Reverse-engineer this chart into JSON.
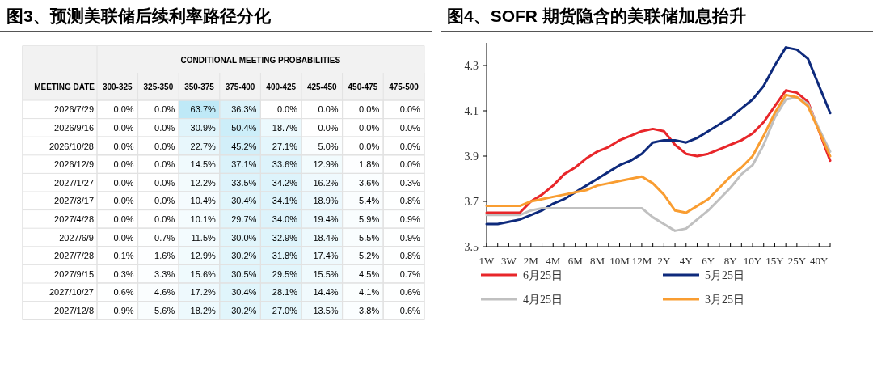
{
  "chart_data": [
    {
      "type": "heatmap",
      "title": "图3、预测美联储后续利率路径分化",
      "subtitle": "CONDITIONAL MEETING PROBABILITIES",
      "ylabel": "MEETING DATE",
      "categories": [
        "300-325",
        "325-350",
        "350-375",
        "375-400",
        "400-425",
        "425-450",
        "450-475",
        "475-500"
      ],
      "y_categories": [
        "2026/7/29",
        "2026/9/16",
        "2026/10/28",
        "2026/12/9",
        "2027/1/27",
        "2027/3/17",
        "2027/4/28",
        "2027/6/9",
        "2027/7/28",
        "2027/9/15",
        "2027/10/27",
        "2027/12/8"
      ],
      "cells": [
        [
          0.0,
          0.0,
          63.7,
          36.3,
          0.0,
          0.0,
          0.0,
          0.0
        ],
        [
          0.0,
          0.0,
          30.9,
          50.4,
          18.7,
          0.0,
          0.0,
          0.0
        ],
        [
          0.0,
          0.0,
          22.7,
          45.2,
          27.1,
          5.0,
          0.0,
          0.0
        ],
        [
          0.0,
          0.0,
          14.5,
          37.1,
          33.6,
          12.9,
          1.8,
          0.0
        ],
        [
          0.0,
          0.0,
          12.2,
          33.5,
          34.2,
          16.2,
          3.6,
          0.3
        ],
        [
          0.0,
          0.0,
          10.4,
          30.4,
          34.1,
          18.9,
          5.4,
          0.8
        ],
        [
          0.0,
          0.0,
          10.1,
          29.7,
          34.0,
          19.4,
          5.9,
          0.9
        ],
        [
          0.0,
          0.7,
          11.5,
          30.0,
          32.9,
          18.4,
          5.5,
          0.9
        ],
        [
          0.1,
          1.6,
          12.9,
          30.2,
          31.8,
          17.4,
          5.2,
          0.8
        ],
        [
          0.3,
          3.3,
          15.6,
          30.5,
          29.5,
          15.5,
          4.5,
          0.7
        ],
        [
          0.6,
          4.6,
          17.2,
          30.4,
          28.1,
          14.4,
          4.1,
          0.6
        ],
        [
          0.9,
          5.6,
          18.2,
          30.2,
          27.0,
          13.5,
          3.8,
          0.6
        ]
      ],
      "cell_labels": [
        [
          "0.0%",
          "0.0%",
          "63.7%",
          "36.3%",
          "0.0%",
          "0.0%",
          "0.0%",
          "0.0%"
        ],
        [
          "0.0%",
          "0.0%",
          "30.9%",
          "50.4%",
          "18.7%",
          "0.0%",
          "0.0%",
          "0.0%"
        ],
        [
          "0.0%",
          "0.0%",
          "22.7%",
          "45.2%",
          "27.1%",
          "5.0%",
          "0.0%",
          "0.0%"
        ],
        [
          "0.0%",
          "0.0%",
          "14.5%",
          "37.1%",
          "33.6%",
          "12.9%",
          "1.8%",
          "0.0%"
        ],
        [
          "0.0%",
          "0.0%",
          "12.2%",
          "33.5%",
          "34.2%",
          "16.2%",
          "3.6%",
          "0.3%"
        ],
        [
          "0.0%",
          "0.0%",
          "10.4%",
          "30.4%",
          "34.1%",
          "18.9%",
          "5.4%",
          "0.8%"
        ],
        [
          "0.0%",
          "0.0%",
          "10.1%",
          "29.7%",
          "34.0%",
          "19.4%",
          "5.9%",
          "0.9%"
        ],
        [
          "0.0%",
          "0.7%",
          "11.5%",
          "30.0%",
          "32.9%",
          "18.4%",
          "5.5%",
          "0.9%"
        ],
        [
          "0.1%",
          "1.6%",
          "12.9%",
          "30.2%",
          "31.8%",
          "17.4%",
          "5.2%",
          "0.8%"
        ],
        [
          "0.3%",
          "3.3%",
          "15.6%",
          "30.5%",
          "29.5%",
          "15.5%",
          "4.5%",
          "0.7%"
        ],
        [
          "0.6%",
          "4.6%",
          "17.2%",
          "30.4%",
          "28.1%",
          "14.4%",
          "4.1%",
          "0.6%"
        ],
        [
          "0.9%",
          "5.6%",
          "18.2%",
          "30.2%",
          "27.0%",
          "13.5%",
          "3.8%",
          "0.6%"
        ]
      ]
    },
    {
      "type": "line",
      "title": "图4、SOFR 期货隐含的美联储加息抬升",
      "legend": "bottom",
      "grid": false,
      "categories": [
        "1W",
        null,
        "3W",
        null,
        "2M",
        null,
        "4M",
        null,
        "6M",
        null,
        "8M",
        null,
        "10M",
        null,
        "12M",
        null,
        "2Y",
        null,
        "4Y",
        null,
        "6Y",
        null,
        "8Y",
        null,
        "10Y",
        null,
        "15Y",
        null,
        "25Y",
        null,
        "40Y",
        null
      ],
      "ylim": [
        3.5,
        4.4
      ],
      "yticks": [
        3.5,
        3.7,
        3.9,
        4.1,
        4.3
      ],
      "series": [
        {
          "name": "6月25日",
          "color": "#e8262a",
          "values": [
            3.65,
            3.65,
            3.65,
            3.65,
            3.7,
            3.73,
            3.77,
            3.82,
            3.85,
            3.89,
            3.92,
            3.94,
            3.97,
            3.99,
            4.01,
            4.02,
            4.01,
            3.95,
            3.91,
            3.9,
            3.91,
            3.93,
            3.95,
            3.97,
            4.0,
            4.05,
            4.12,
            4.19,
            4.18,
            4.14,
            4.01,
            3.88
          ]
        },
        {
          "name": "5月25日",
          "color": "#0e2a7c",
          "values": [
            3.6,
            3.6,
            3.61,
            3.62,
            3.64,
            3.66,
            3.69,
            3.71,
            3.74,
            3.77,
            3.8,
            3.83,
            3.86,
            3.88,
            3.91,
            3.96,
            3.97,
            3.97,
            3.96,
            3.98,
            4.01,
            4.04,
            4.07,
            4.11,
            4.15,
            4.21,
            4.3,
            4.38,
            4.37,
            4.33,
            4.21,
            4.09
          ]
        },
        {
          "name": "4月25日",
          "color": "#c0c0c0",
          "values": [
            3.64,
            3.64,
            3.64,
            3.64,
            3.66,
            3.67,
            3.67,
            3.67,
            3.67,
            3.67,
            3.67,
            3.67,
            3.67,
            3.67,
            3.67,
            3.63,
            3.6,
            3.57,
            3.58,
            3.62,
            3.66,
            3.71,
            3.76,
            3.82,
            3.86,
            3.95,
            4.07,
            4.15,
            4.16,
            4.13,
            4.02,
            3.92
          ]
        },
        {
          "name": "3月25日",
          "color": "#f99d31",
          "values": [
            3.68,
            3.68,
            3.68,
            3.68,
            3.7,
            3.71,
            3.72,
            3.73,
            3.74,
            3.75,
            3.77,
            3.78,
            3.79,
            3.8,
            3.81,
            3.78,
            3.73,
            3.66,
            3.65,
            3.68,
            3.71,
            3.76,
            3.81,
            3.85,
            3.9,
            3.99,
            4.09,
            4.17,
            4.16,
            4.12,
            4.01,
            3.9
          ]
        }
      ]
    }
  ]
}
